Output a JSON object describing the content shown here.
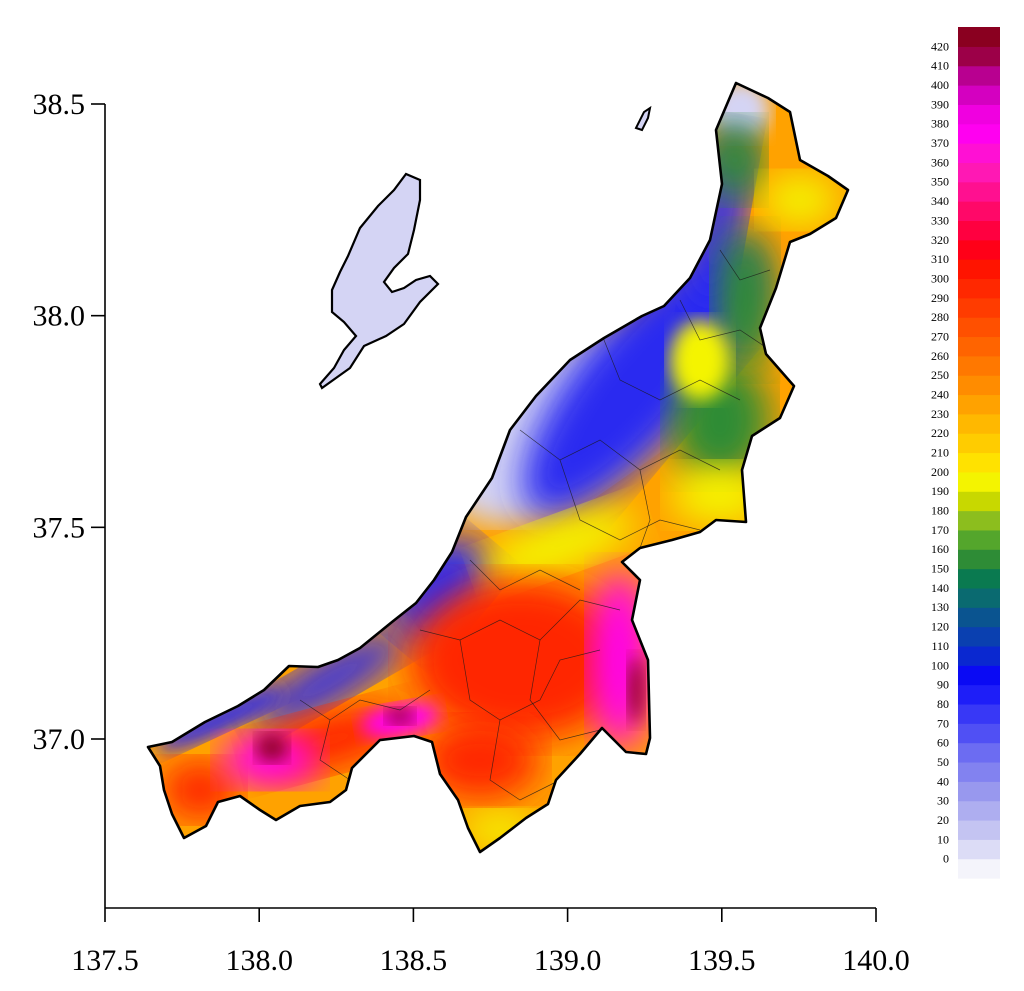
{
  "axes": {
    "x_ticks": [
      "137.5",
      "138.0",
      "138.5",
      "139.0",
      "139.5",
      "140.0"
    ],
    "y_ticks": [
      "37.0",
      "37.5",
      "38.0",
      "38.5"
    ],
    "xlim": [
      137.5,
      140.0
    ],
    "ylim": [
      36.6,
      38.65
    ]
  },
  "colorbar": {
    "labels": [
      "0",
      "10",
      "20",
      "30",
      "40",
      "50",
      "60",
      "70",
      "80",
      "90",
      "100",
      "110",
      "120",
      "130",
      "140",
      "150",
      "160",
      "170",
      "180",
      "190",
      "200",
      "210",
      "220",
      "230",
      "240",
      "250",
      "260",
      "270",
      "280",
      "290",
      "300",
      "310",
      "320",
      "330",
      "340",
      "350",
      "360",
      "370",
      "380",
      "390",
      "400",
      "410",
      "420"
    ],
    "colors": [
      "#f4f4fb",
      "#dcdcf6",
      "#c4c4f2",
      "#aeaef0",
      "#9898ee",
      "#8282f0",
      "#6c6cf2",
      "#5050f4",
      "#3838f6",
      "#1e1ef8",
      "#0a0af4",
      "#0a28d0",
      "#0a40b0",
      "#0a5490",
      "#0a6a70",
      "#0a7a50",
      "#2e8c36",
      "#54a62c",
      "#8cbe1e",
      "#c8d800",
      "#f4f400",
      "#ffe200",
      "#ffcc00",
      "#ffb800",
      "#ffa200",
      "#ff8c00",
      "#ff7800",
      "#ff6400",
      "#ff5000",
      "#ff3c00",
      "#ff2800",
      "#ff1400",
      "#ff0018",
      "#ff0040",
      "#ff0868",
      "#ff1090",
      "#ff18b4",
      "#ff10d4",
      "#ff00f0",
      "#f000e0",
      "#d400c0",
      "#b80090",
      "#9c0048",
      "#8a0020"
    ]
  },
  "colors": {
    "outline": "#000000",
    "axis": "#000000",
    "low": "#d4d4f4",
    "sea_blue": "#2a2af0",
    "green": "#2e8c36",
    "yellow": "#f4f400",
    "orange": "#ffa200",
    "red": "#ff2800",
    "magenta": "#ff00f0",
    "dark_red": "#8a0020"
  }
}
